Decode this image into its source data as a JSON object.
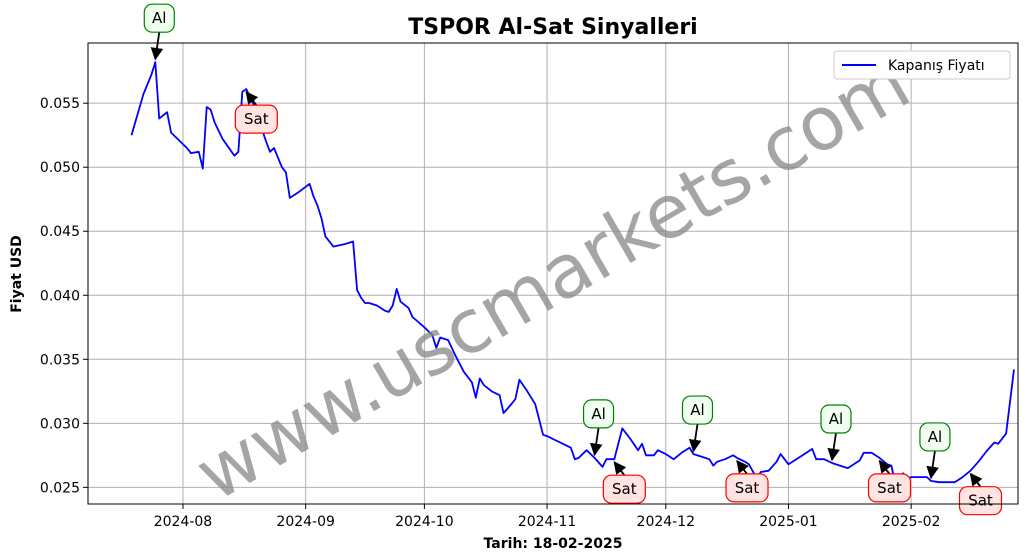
{
  "chart_data": {
    "type": "line",
    "title": "TSPOR Al-Sat Sinyalleri",
    "xlabel": "Tarih: 18-02-2025",
    "ylabel": "Fiyat USD",
    "x_range": [
      "2024-07-08",
      "2025-02-28"
    ],
    "ylim": [
      0.0237,
      0.0597
    ],
    "x_ticks": [
      {
        "date": "2024-08-01",
        "label": "2024-08"
      },
      {
        "date": "2024-09-01",
        "label": "2024-09"
      },
      {
        "date": "2024-10-01",
        "label": "2024-10"
      },
      {
        "date": "2024-11-01",
        "label": "2024-11"
      },
      {
        "date": "2024-12-01",
        "label": "2024-12"
      },
      {
        "date": "2025-01-01",
        "label": "2025-01"
      },
      {
        "date": "2025-02-01",
        "label": "2025-02"
      }
    ],
    "y_ticks": [
      {
        "value": 0.025,
        "label": "0.025"
      },
      {
        "value": 0.03,
        "label": "0.030"
      },
      {
        "value": 0.035,
        "label": "0.035"
      },
      {
        "value": 0.04,
        "label": "0.040"
      },
      {
        "value": 0.045,
        "label": "0.045"
      },
      {
        "value": 0.05,
        "label": "0.050"
      },
      {
        "value": 0.055,
        "label": "0.055"
      }
    ],
    "grid": true,
    "legend": {
      "position": "top-right",
      "entries": [
        "Kapanış Fiyatı"
      ]
    },
    "series": [
      {
        "name": "Kapanış Fiyatı",
        "color": "#0000ff",
        "points": [
          [
            "2024-07-19",
            0.0525
          ],
          [
            "2024-07-22",
            0.0557
          ],
          [
            "2024-07-24",
            0.0572
          ],
          [
            "2024-07-25",
            0.0582
          ],
          [
            "2024-07-26",
            0.0538
          ],
          [
            "2024-07-28",
            0.0543
          ],
          [
            "2024-07-29",
            0.0527
          ],
          [
            "2024-08-02",
            0.0515
          ],
          [
            "2024-08-03",
            0.0511
          ],
          [
            "2024-08-05",
            0.0512
          ],
          [
            "2024-08-06",
            0.0499
          ],
          [
            "2024-08-07",
            0.0547
          ],
          [
            "2024-08-08",
            0.0545
          ],
          [
            "2024-08-09",
            0.0535
          ],
          [
            "2024-08-11",
            0.0522
          ],
          [
            "2024-08-14",
            0.0509
          ],
          [
            "2024-08-15",
            0.0512
          ],
          [
            "2024-08-16",
            0.0559
          ],
          [
            "2024-08-17",
            0.0561
          ],
          [
            "2024-08-19",
            0.0548
          ],
          [
            "2024-08-22",
            0.052
          ],
          [
            "2024-08-23",
            0.0512
          ],
          [
            "2024-08-24",
            0.0515
          ],
          [
            "2024-08-26",
            0.05
          ],
          [
            "2024-08-27",
            0.0496
          ],
          [
            "2024-08-28",
            0.0476
          ],
          [
            "2024-08-30",
            0.048
          ],
          [
            "2024-09-02",
            0.0487
          ],
          [
            "2024-09-03",
            0.0477
          ],
          [
            "2024-09-04",
            0.047
          ],
          [
            "2024-09-05",
            0.046
          ],
          [
            "2024-09-06",
            0.0446
          ],
          [
            "2024-09-08",
            0.0438
          ],
          [
            "2024-09-11",
            0.044
          ],
          [
            "2024-09-13",
            0.0442
          ],
          [
            "2024-09-14",
            0.0404
          ],
          [
            "2024-09-15",
            0.0398
          ],
          [
            "2024-09-16",
            0.0394
          ],
          [
            "2024-09-17",
            0.0394
          ],
          [
            "2024-09-19",
            0.0392
          ],
          [
            "2024-09-21",
            0.0388
          ],
          [
            "2024-09-22",
            0.0387
          ],
          [
            "2024-09-23",
            0.0392
          ],
          [
            "2024-09-24",
            0.0405
          ],
          [
            "2024-09-25",
            0.0395
          ],
          [
            "2024-09-27",
            0.039
          ],
          [
            "2024-09-28",
            0.0383
          ],
          [
            "2024-10-01",
            0.0375
          ],
          [
            "2024-10-03",
            0.0369
          ],
          [
            "2024-10-04",
            0.0359
          ],
          [
            "2024-10-05",
            0.0367
          ],
          [
            "2024-10-07",
            0.0365
          ],
          [
            "2024-10-09",
            0.0352
          ],
          [
            "2024-10-11",
            0.034
          ],
          [
            "2024-10-13",
            0.0332
          ],
          [
            "2024-10-14",
            0.032
          ],
          [
            "2024-10-15",
            0.0335
          ],
          [
            "2024-10-16",
            0.033
          ],
          [
            "2024-10-18",
            0.0325
          ],
          [
            "2024-10-20",
            0.0322
          ],
          [
            "2024-10-21",
            0.0308
          ],
          [
            "2024-10-23",
            0.0315
          ],
          [
            "2024-10-24",
            0.0319
          ],
          [
            "2024-10-25",
            0.0334
          ],
          [
            "2024-10-27",
            0.0325
          ],
          [
            "2024-10-29",
            0.0315
          ],
          [
            "2024-10-31",
            0.0291
          ],
          [
            "2024-11-01",
            0.029
          ],
          [
            "2024-11-03",
            0.0287
          ],
          [
            "2024-11-05",
            0.0284
          ],
          [
            "2024-11-07",
            0.0281
          ],
          [
            "2024-11-08",
            0.0272
          ],
          [
            "2024-11-09",
            0.0273
          ],
          [
            "2024-11-11",
            0.0279
          ],
          [
            "2024-11-13",
            0.0273
          ],
          [
            "2024-11-15",
            0.0266
          ],
          [
            "2024-11-16",
            0.0272
          ],
          [
            "2024-11-18",
            0.0272
          ],
          [
            "2024-11-20",
            0.0296
          ],
          [
            "2024-11-22",
            0.0288
          ],
          [
            "2024-11-24",
            0.0279
          ],
          [
            "2024-11-25",
            0.0284
          ],
          [
            "2024-11-26",
            0.0275
          ],
          [
            "2024-11-28",
            0.0275
          ],
          [
            "2024-11-29",
            0.0279
          ],
          [
            "2024-12-01",
            0.0276
          ],
          [
            "2024-12-03",
            0.0272
          ],
          [
            "2024-12-05",
            0.0277
          ],
          [
            "2024-12-07",
            0.0281
          ],
          [
            "2024-12-08",
            0.0276
          ],
          [
            "2024-12-10",
            0.0274
          ],
          [
            "2024-12-12",
            0.0272
          ],
          [
            "2024-12-13",
            0.0267
          ],
          [
            "2024-12-14",
            0.027
          ],
          [
            "2024-12-16",
            0.0272
          ],
          [
            "2024-12-18",
            0.0275
          ],
          [
            "2024-12-19",
            0.0273
          ],
          [
            "2024-12-21",
            0.027
          ],
          [
            "2024-12-22",
            0.0268
          ],
          [
            "2024-12-24",
            0.0257
          ],
          [
            "2024-12-25",
            0.0262
          ],
          [
            "2024-12-27",
            0.0263
          ],
          [
            "2024-12-29",
            0.027
          ],
          [
            "2024-12-30",
            0.0276
          ],
          [
            "2025-01-01",
            0.0268
          ],
          [
            "2025-01-03",
            0.0272
          ],
          [
            "2025-01-05",
            0.0276
          ],
          [
            "2025-01-07",
            0.028
          ],
          [
            "2025-01-08",
            0.0272
          ],
          [
            "2025-01-10",
            0.0272
          ],
          [
            "2025-01-12",
            0.0269
          ],
          [
            "2025-01-14",
            0.0267
          ],
          [
            "2025-01-16",
            0.0265
          ],
          [
            "2025-01-18",
            0.0269
          ],
          [
            "2025-01-19",
            0.0271
          ],
          [
            "2025-01-20",
            0.0277
          ],
          [
            "2025-01-22",
            0.0277
          ],
          [
            "2025-01-24",
            0.0273
          ],
          [
            "2025-01-26",
            0.0268
          ],
          [
            "2025-01-27",
            0.0267
          ],
          [
            "2025-01-28",
            0.0253
          ],
          [
            "2025-01-29",
            0.0258
          ],
          [
            "2025-01-30",
            0.0261
          ],
          [
            "2025-01-31",
            0.0257
          ],
          [
            "2025-02-01",
            0.0258
          ],
          [
            "2025-02-03",
            0.0258
          ],
          [
            "2025-02-05",
            0.0258
          ],
          [
            "2025-02-06",
            0.0255
          ],
          [
            "2025-02-08",
            0.0254
          ],
          [
            "2025-02-10",
            0.0254
          ],
          [
            "2025-02-12",
            0.0254
          ],
          [
            "2025-02-14",
            0.0258
          ],
          [
            "2025-02-16",
            0.0263
          ],
          [
            "2025-02-18",
            0.027
          ],
          [
            "2025-02-20",
            0.0278
          ],
          [
            "2025-02-22",
            0.0285
          ],
          [
            "2025-02-23",
            0.0284
          ],
          [
            "2025-02-25",
            0.0292
          ],
          [
            "2025-02-27",
            0.0342
          ]
        ]
      }
    ],
    "annotations": [
      {
        "label": "Al",
        "type": "buy",
        "date": "2024-07-25",
        "value": 0.0582
      },
      {
        "label": "Sat",
        "type": "sell",
        "date": "2024-08-17",
        "value": 0.0561
      },
      {
        "label": "Al",
        "type": "buy",
        "date": "2024-11-13",
        "value": 0.0273
      },
      {
        "label": "Sat",
        "type": "sell",
        "date": "2024-11-18",
        "value": 0.0272
      },
      {
        "label": "Al",
        "type": "buy",
        "date": "2024-12-08",
        "value": 0.0276
      },
      {
        "label": "Sat",
        "type": "sell",
        "date": "2024-12-19",
        "value": 0.0273
      },
      {
        "label": "Al",
        "type": "buy",
        "date": "2025-01-12",
        "value": 0.0269
      },
      {
        "label": "Sat",
        "type": "sell",
        "date": "2025-01-24",
        "value": 0.0273
      },
      {
        "label": "Al",
        "type": "buy",
        "date": "2025-02-06",
        "value": 0.0255
      },
      {
        "label": "Sat",
        "type": "sell",
        "date": "2025-02-16",
        "value": 0.0263
      }
    ],
    "watermark": "www.uscmarkets.com"
  },
  "colors": {
    "line": "#0000ff",
    "buy_border": "#008000",
    "buy_fill": "#f0fff0",
    "sell_border": "#ff0000",
    "sell_fill": "#ffe4e1",
    "grid": "#b0b0b0"
  }
}
